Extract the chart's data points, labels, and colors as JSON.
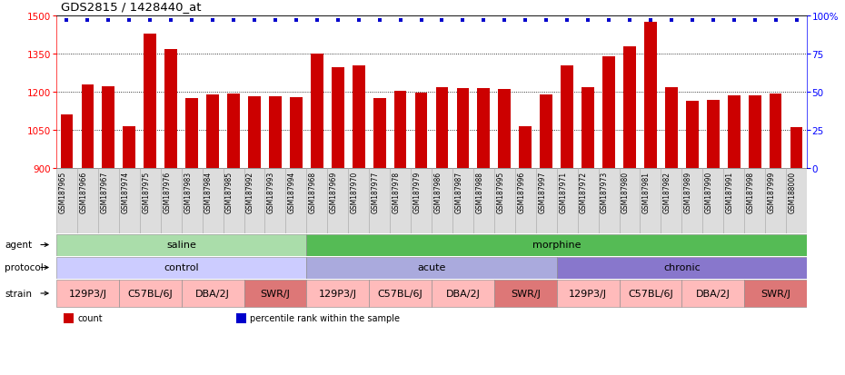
{
  "title": "GDS2815 / 1428440_at",
  "bar_color": "#cc0000",
  "dot_color": "#0000cc",
  "ylim_left": [
    900,
    1500
  ],
  "ylim_right": [
    0,
    100
  ],
  "yticks_left": [
    900,
    1050,
    1200,
    1350,
    1500
  ],
  "yticks_right": [
    0,
    25,
    50,
    75,
    100
  ],
  "samples": [
    "GSM187965",
    "GSM187966",
    "GSM187967",
    "GSM187974",
    "GSM187975",
    "GSM187976",
    "GSM187983",
    "GSM187984",
    "GSM187985",
    "GSM187992",
    "GSM187993",
    "GSM187994",
    "GSM187968",
    "GSM187969",
    "GSM187970",
    "GSM187977",
    "GSM187978",
    "GSM187979",
    "GSM187986",
    "GSM187987",
    "GSM187988",
    "GSM187995",
    "GSM187996",
    "GSM187997",
    "GSM187971",
    "GSM187972",
    "GSM187973",
    "GSM187980",
    "GSM187981",
    "GSM187982",
    "GSM187989",
    "GSM187990",
    "GSM187991",
    "GSM187998",
    "GSM187999",
    "GSM188000"
  ],
  "bar_values": [
    1112,
    1228,
    1221,
    1065,
    1430,
    1368,
    1175,
    1190,
    1192,
    1182,
    1182,
    1178,
    1350,
    1296,
    1302,
    1175,
    1205,
    1196,
    1218,
    1216,
    1215,
    1210,
    1063,
    1190,
    1302,
    1218,
    1340,
    1378,
    1476,
    1218,
    1165,
    1167,
    1186,
    1187,
    1192,
    1060
  ],
  "agent_groups": [
    {
      "label": "saline",
      "start": 0,
      "end": 12,
      "color": "#aaddaa"
    },
    {
      "label": "morphine",
      "start": 12,
      "end": 36,
      "color": "#55bb55"
    }
  ],
  "protocol_groups": [
    {
      "label": "control",
      "start": 0,
      "end": 12,
      "color": "#ccccff"
    },
    {
      "label": "acute",
      "start": 12,
      "end": 24,
      "color": "#aaaadd"
    },
    {
      "label": "chronic",
      "start": 24,
      "end": 36,
      "color": "#8877cc"
    }
  ],
  "strain_groups": [
    {
      "label": "129P3/J",
      "start": 0,
      "end": 3,
      "color": "#ffbbbb"
    },
    {
      "label": "C57BL/6J",
      "start": 3,
      "end": 6,
      "color": "#ffbbbb"
    },
    {
      "label": "DBA/2J",
      "start": 6,
      "end": 9,
      "color": "#ffbbbb"
    },
    {
      "label": "SWR/J",
      "start": 9,
      "end": 12,
      "color": "#dd7777"
    },
    {
      "label": "129P3/J",
      "start": 12,
      "end": 15,
      "color": "#ffbbbb"
    },
    {
      "label": "C57BL/6J",
      "start": 15,
      "end": 18,
      "color": "#ffbbbb"
    },
    {
      "label": "DBA/2J",
      "start": 18,
      "end": 21,
      "color": "#ffbbbb"
    },
    {
      "label": "SWR/J",
      "start": 21,
      "end": 24,
      "color": "#dd7777"
    },
    {
      "label": "129P3/J",
      "start": 24,
      "end": 27,
      "color": "#ffbbbb"
    },
    {
      "label": "C57BL/6J",
      "start": 27,
      "end": 30,
      "color": "#ffbbbb"
    },
    {
      "label": "DBA/2J",
      "start": 30,
      "end": 33,
      "color": "#ffbbbb"
    },
    {
      "label": "SWR/J",
      "start": 33,
      "end": 36,
      "color": "#dd7777"
    }
  ],
  "legend_items": [
    {
      "label": "count",
      "color": "#cc0000"
    },
    {
      "label": "percentile rank within the sample",
      "color": "#0000cc"
    }
  ],
  "background_color": "#ffffff",
  "ticklabel_bg": "#dddddd"
}
